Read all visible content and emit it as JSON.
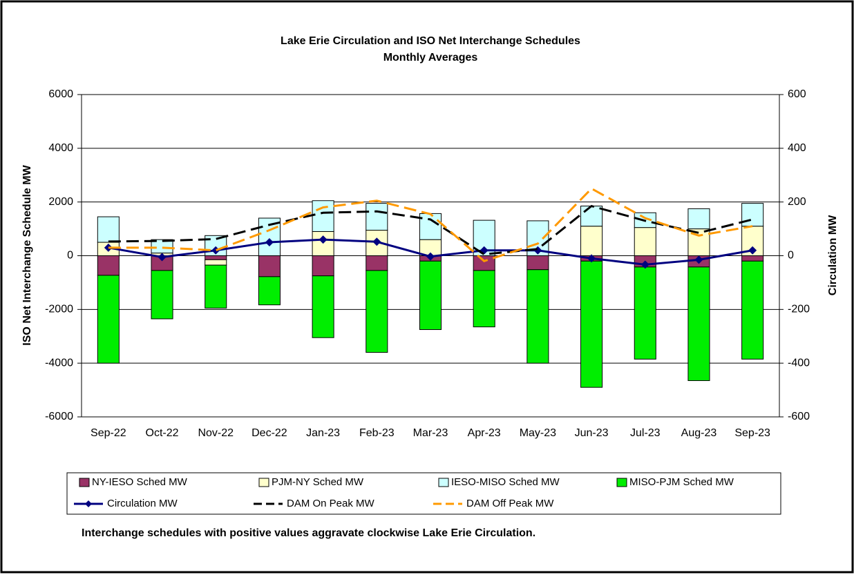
{
  "chart_data": {
    "type": "bar",
    "stacked": true,
    "title": "Lake Erie Circulation and ISO Net Interchange Schedules",
    "subtitle": "Monthly Averages",
    "y_label": "ISO Net Interchange Schedule MW",
    "y2_label": "Circulation MW",
    "note": "Interchange schedules with positive values aggravate clockwise Lake Erie Circulation.",
    "categories": [
      "Sep-22",
      "Oct-22",
      "Nov-22",
      "Dec-22",
      "Jan-23",
      "Feb-23",
      "Mar-23",
      "Apr-23",
      "May-23",
      "Jun-23",
      "Jul-23",
      "Aug-23",
      "Sep-23"
    ],
    "ylim": [
      -6000,
      6000
    ],
    "yticks": [
      -6000,
      -4000,
      -2000,
      0,
      2000,
      4000,
      6000
    ],
    "y2lim": [
      -600,
      600
    ],
    "y2ticks": [
      -600,
      -400,
      -200,
      0,
      200,
      400,
      600
    ],
    "grid": true,
    "legend": "bottom",
    "series": [
      {
        "name": "NY-IESO Sched MW",
        "color": "#993366",
        "values": [
          -730,
          -550,
          -150,
          -780,
          -750,
          -550,
          -200,
          -550,
          -520,
          -200,
          -420,
          -420,
          -200
        ]
      },
      {
        "name": "PJM-NY Sched MW",
        "color": "#ffffcc",
        "values": [
          500,
          100,
          -200,
          0,
          900,
          950,
          600,
          0,
          0,
          1100,
          1050,
          1000,
          1100
        ]
      },
      {
        "name": "IESO-MISO Sched MW",
        "color": "#ccffff",
        "values": [
          950,
          500,
          750,
          1400,
          1150,
          1000,
          970,
          1320,
          1300,
          750,
          550,
          750,
          850
        ]
      },
      {
        "name": "MISO-PJM Sched MW",
        "color": "#00ee00",
        "values": [
          -3270,
          -1800,
          -1600,
          -1050,
          -2300,
          -3050,
          -2550,
          -2100,
          -3480,
          -4700,
          -3430,
          -4230,
          -3650
        ]
      },
      {
        "name": "Circulation MW",
        "type": "line",
        "axis": "y2",
        "color": "#000080",
        "line_style": "solid",
        "marker": "diamond",
        "values": [
          30,
          -5,
          20,
          50,
          60,
          52,
          -3,
          20,
          20,
          -10,
          -33,
          -15,
          20
        ]
      },
      {
        "name": "DAM On Peak MW",
        "type": "line",
        "axis": "y2",
        "color": "#000000",
        "line_style": "dashed",
        "values": [
          53,
          55,
          62,
          115,
          160,
          165,
          135,
          5,
          25,
          185,
          130,
          85,
          135
        ]
      },
      {
        "name": "DAM Off Peak MW",
        "type": "line",
        "axis": "y2",
        "color": "#ff9900",
        "line_style": "dashed",
        "values": [
          30,
          30,
          20,
          95,
          180,
          205,
          155,
          -20,
          45,
          250,
          140,
          75,
          110
        ]
      }
    ]
  }
}
